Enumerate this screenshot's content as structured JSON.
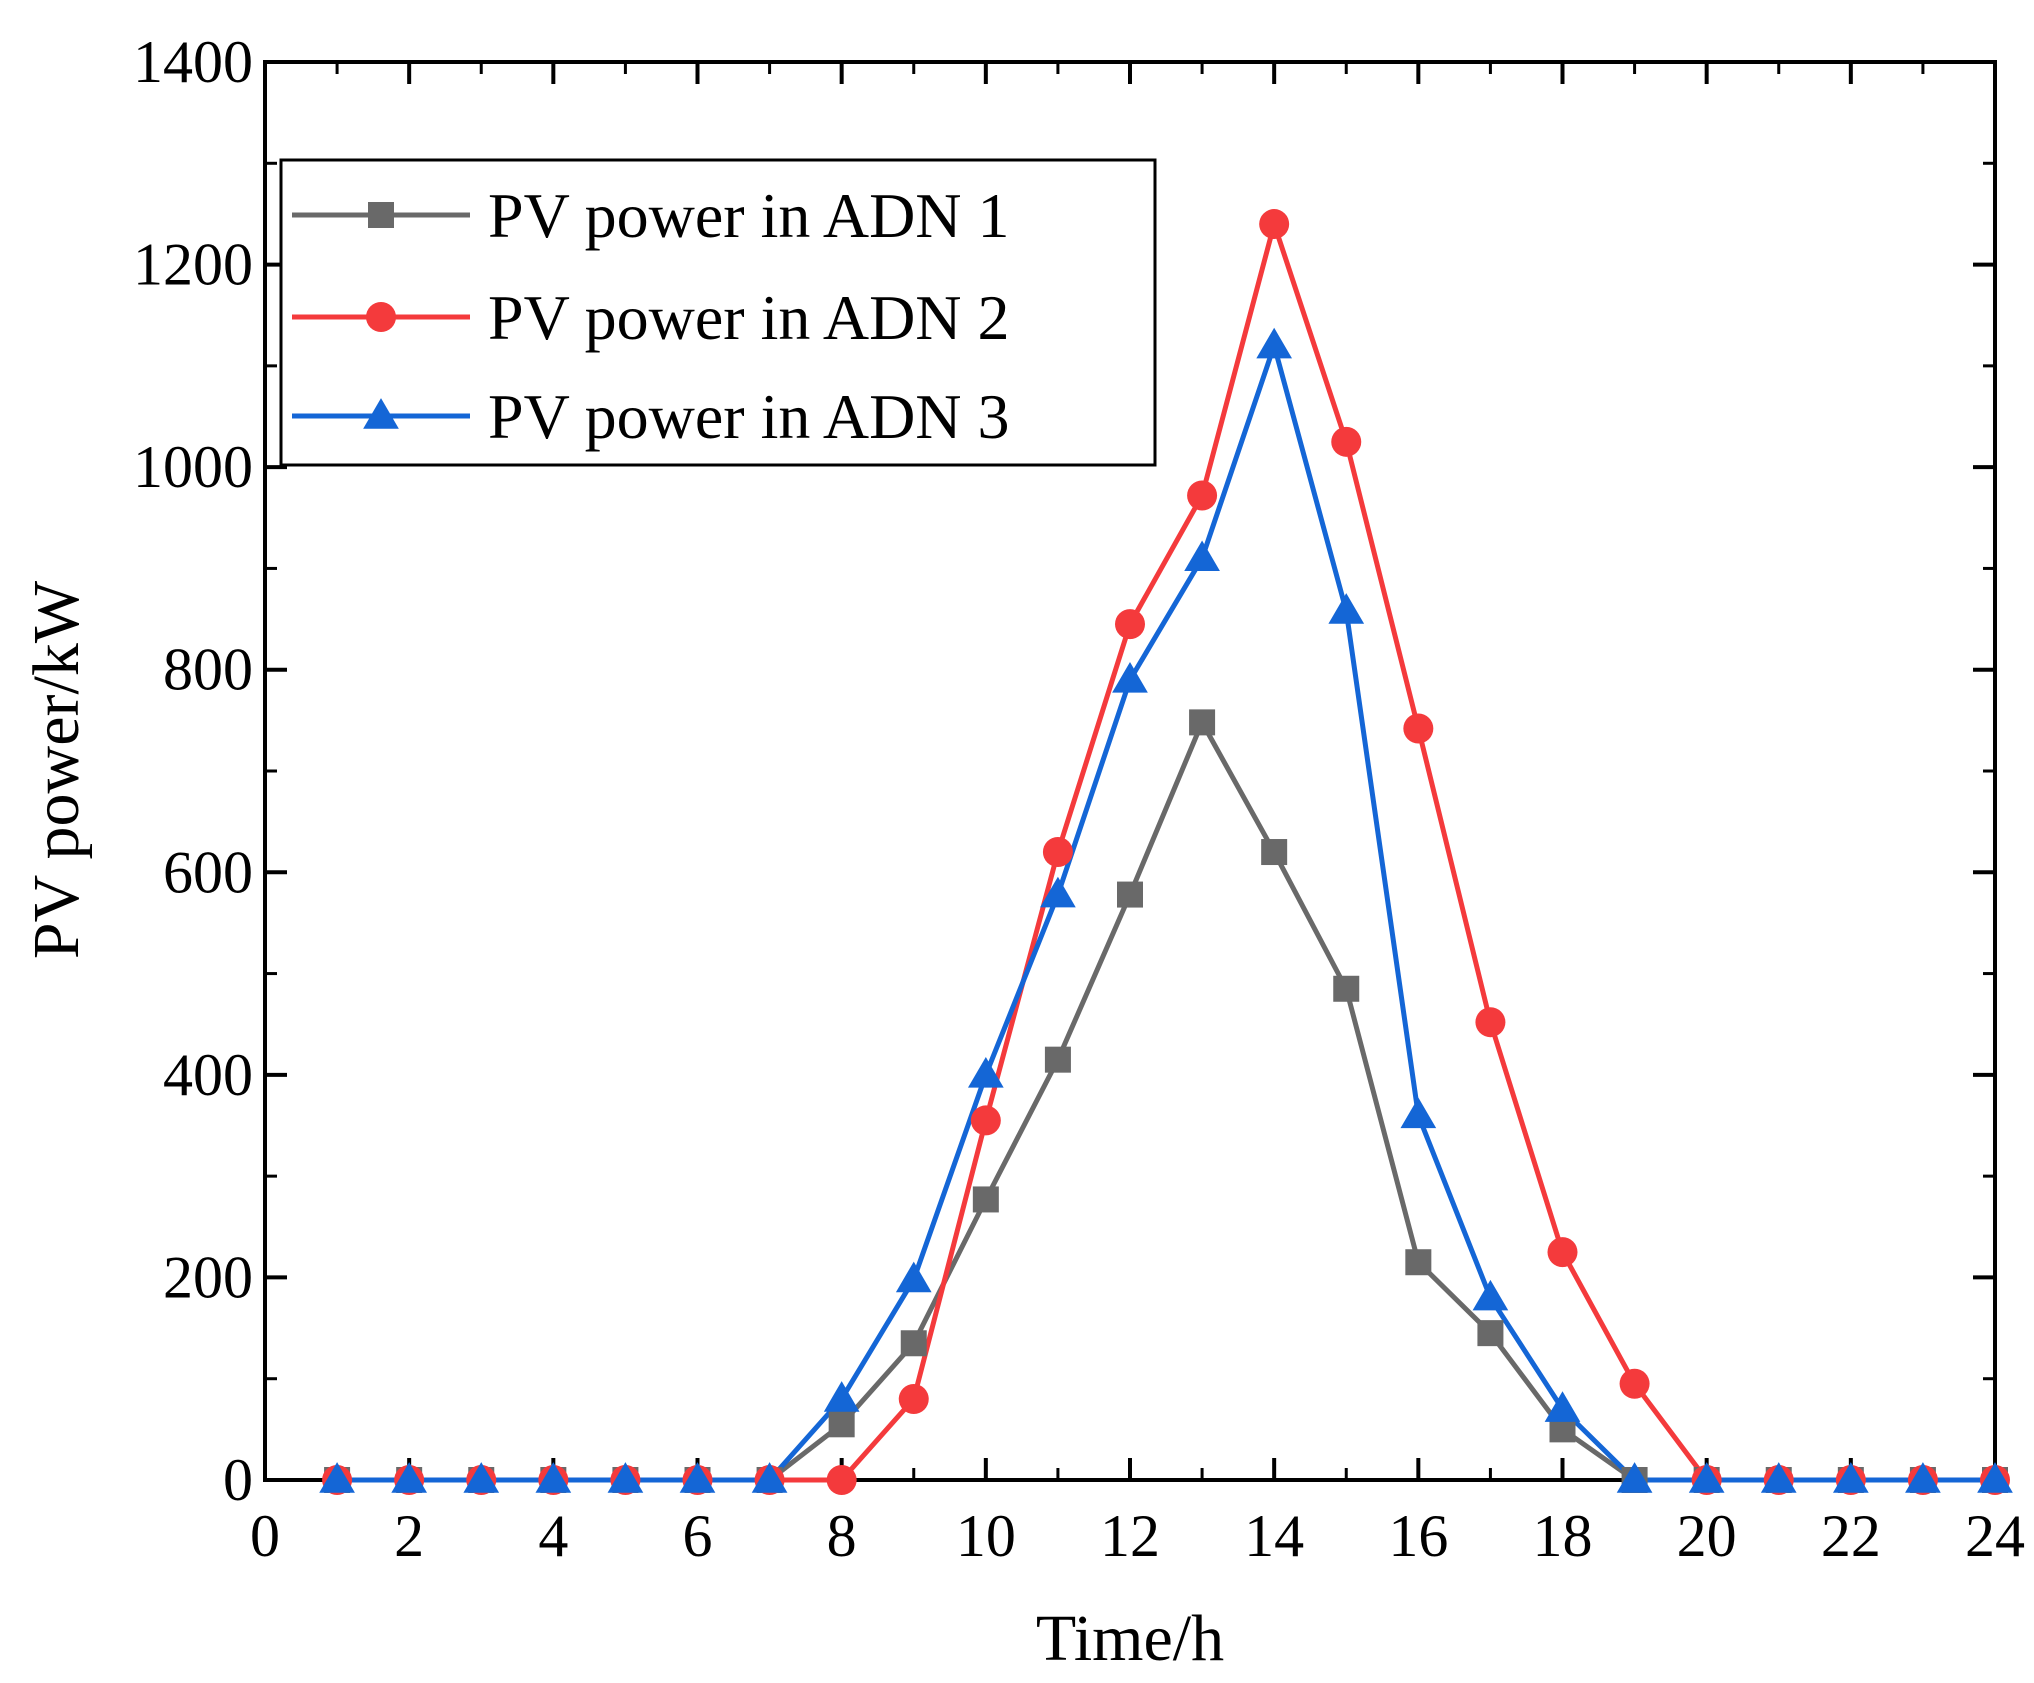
{
  "chart_data": {
    "type": "line",
    "title": "",
    "xlabel": "Time/h",
    "ylabel": "PV power/kW",
    "xlim": [
      0,
      24
    ],
    "ylim": [
      0,
      1400
    ],
    "xticks": [
      0,
      2,
      4,
      6,
      8,
      10,
      12,
      14,
      16,
      18,
      20,
      22,
      24
    ],
    "yticks": [
      0,
      200,
      400,
      600,
      800,
      1000,
      1200,
      1400
    ],
    "grid": false,
    "legend_position": "top-left",
    "x": [
      1,
      2,
      3,
      4,
      5,
      6,
      7,
      8,
      9,
      10,
      11,
      12,
      13,
      14,
      15,
      16,
      17,
      18,
      19,
      20,
      21,
      22,
      23,
      24
    ],
    "series": [
      {
        "name": "PV power in ADN 1",
        "color": "#696969",
        "marker": "square",
        "values": [
          0,
          0,
          0,
          0,
          0,
          0,
          0,
          55,
          135,
          277,
          415,
          578,
          748,
          620,
          485,
          215,
          145,
          50,
          0,
          0,
          0,
          0,
          0,
          0
        ]
      },
      {
        "name": "PV power in ADN 2",
        "color": "#f43a3c",
        "marker": "circle",
        "values": [
          0,
          0,
          0,
          0,
          0,
          0,
          0,
          0,
          80,
          355,
          620,
          845,
          972,
          1240,
          1025,
          742,
          452,
          225,
          95,
          0,
          0,
          0,
          0,
          0
        ]
      },
      {
        "name": "PV power in ADN 3",
        "color": "#1466d6",
        "marker": "triangle",
        "values": [
          0,
          0,
          0,
          0,
          0,
          0,
          0,
          80,
          198,
          400,
          578,
          790,
          910,
          1120,
          858,
          360,
          180,
          70,
          0,
          0,
          0,
          0,
          0,
          0
        ]
      }
    ]
  }
}
